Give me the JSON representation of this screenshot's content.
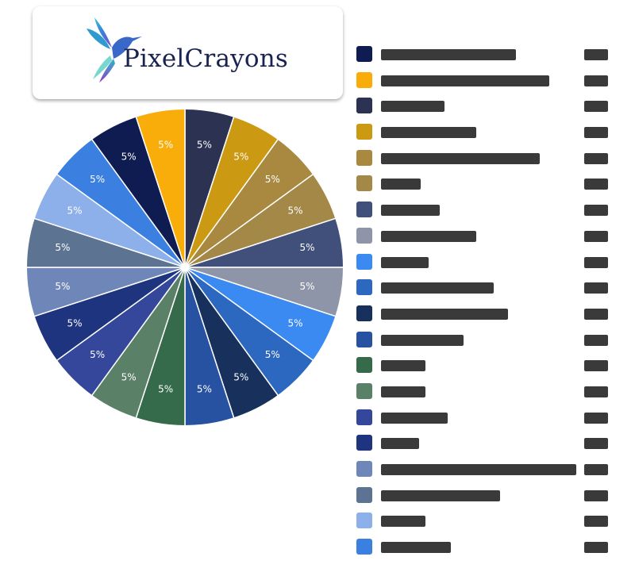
{
  "logo": {
    "text": "PixelCrayons",
    "colors": [
      "#1a2350",
      "#3b7bd8",
      "#36c3d8",
      "#7d4fd0"
    ]
  },
  "chart_data": {
    "type": "pie",
    "title": "",
    "slice_border_color": "#ffffff",
    "slices": [
      {
        "label": "",
        "value": 5,
        "display": "5%",
        "color": "#2b3252"
      },
      {
        "label": "",
        "value": 5,
        "display": "5%",
        "color": "#cc9a12"
      },
      {
        "label": "",
        "value": 5,
        "display": "5%",
        "color": "#a8893f"
      },
      {
        "label": "",
        "value": 5,
        "display": "5%",
        "color": "#a38848"
      },
      {
        "label": "",
        "value": 5,
        "display": "5%",
        "color": "#40507a"
      },
      {
        "label": "",
        "value": 5,
        "display": "5%",
        "color": "#8e95a8"
      },
      {
        "label": "",
        "value": 5,
        "display": "5%",
        "color": "#3a8af2"
      },
      {
        "label": "",
        "value": 5,
        "display": "5%",
        "color": "#2c67c0"
      },
      {
        "label": "",
        "value": 5,
        "display": "5%",
        "color": "#17305c"
      },
      {
        "label": "",
        "value": 5,
        "display": "5%",
        "color": "#2752a2"
      },
      {
        "label": "",
        "value": 5,
        "display": "5%",
        "color": "#356b4b"
      },
      {
        "label": "",
        "value": 5,
        "display": "5%",
        "color": "#5b8068"
      },
      {
        "label": "",
        "value": 5,
        "display": "5%",
        "color": "#34479a"
      },
      {
        "label": "",
        "value": 5,
        "display": "5%",
        "color": "#1e347e"
      },
      {
        "label": "",
        "value": 5,
        "display": "5%",
        "color": "#6f87b8"
      },
      {
        "label": "",
        "value": 5,
        "display": "5%",
        "color": "#5c7391"
      },
      {
        "label": "",
        "value": 5,
        "display": "5%",
        "color": "#8eb0ea"
      },
      {
        "label": "",
        "value": 5,
        "display": "5%",
        "color": "#3b80e0"
      },
      {
        "label": "",
        "value": 5,
        "display": "5%",
        "color": "#0f1c52"
      },
      {
        "label": "",
        "value": 5,
        "display": "5%",
        "color": "#f9ad0a"
      }
    ],
    "legend": {
      "placement": "right",
      "items": [
        {
          "name": "",
          "value": "",
          "color": "#0f1c52"
        },
        {
          "name": "",
          "value": "",
          "color": "#f9ad0a"
        },
        {
          "name": "",
          "value": "",
          "color": "#2b3252"
        },
        {
          "name": "",
          "value": "",
          "color": "#cc9a12"
        },
        {
          "name": "",
          "value": "",
          "color": "#a8893f"
        },
        {
          "name": "",
          "value": "",
          "color": "#a38848"
        },
        {
          "name": "",
          "value": "",
          "color": "#40507a"
        },
        {
          "name": "",
          "value": "",
          "color": "#8e95a8"
        },
        {
          "name": "",
          "value": "",
          "color": "#3a8af2"
        },
        {
          "name": "",
          "value": "",
          "color": "#2c67c0"
        },
        {
          "name": "",
          "value": "",
          "color": "#17305c"
        },
        {
          "name": "",
          "value": "",
          "color": "#2752a2"
        },
        {
          "name": "",
          "value": "",
          "color": "#356b4b"
        },
        {
          "name": "",
          "value": "",
          "color": "#5b8068"
        },
        {
          "name": "",
          "value": "",
          "color": "#34479a"
        },
        {
          "name": "",
          "value": "",
          "color": "#1e347e"
        },
        {
          "name": "",
          "value": "",
          "color": "#6f87b8"
        },
        {
          "name": "",
          "value": "",
          "color": "#5c7391"
        },
        {
          "name": "",
          "value": "",
          "color": "#8eb0ea"
        },
        {
          "name": "",
          "value": "",
          "color": "#3b80e0"
        }
      ]
    }
  }
}
